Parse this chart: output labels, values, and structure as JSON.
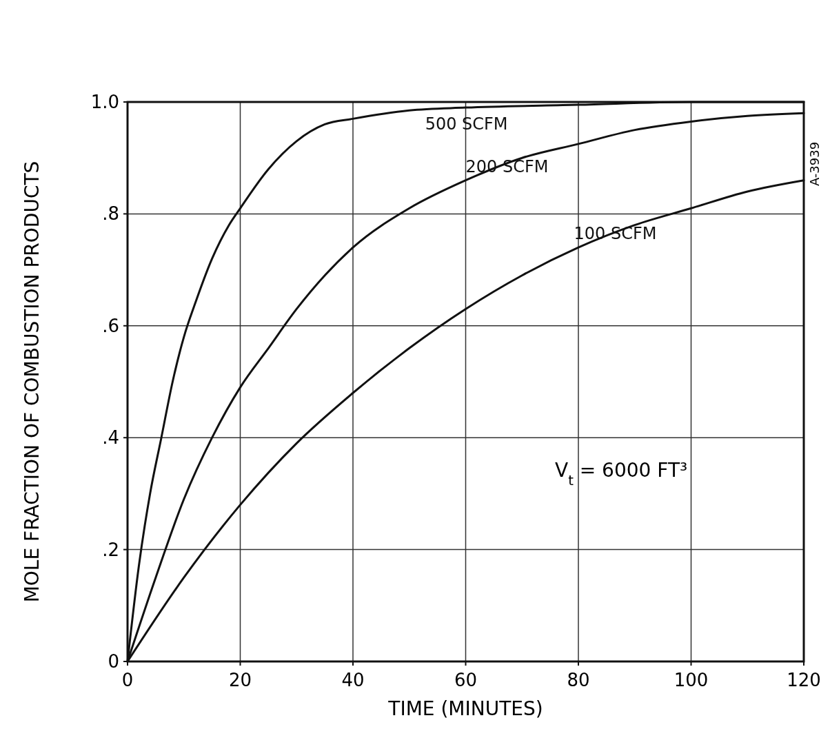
{
  "chart_data": {
    "type": "line",
    "xlabel": "TIME (MINUTES)",
    "ylabel": "MOLE FRACTION OF COMBUSTION PRODUCTS",
    "xlim": [
      0,
      120
    ],
    "ylim": [
      0,
      1
    ],
    "xticks": [
      0,
      20,
      40,
      60,
      80,
      100,
      120
    ],
    "yticks": [
      0,
      {
        "value": 0.2,
        "label": ".2"
      },
      {
        "value": 0.4,
        "label": ".4"
      },
      {
        "value": 0.6,
        "label": ".6"
      },
      {
        "value": 0.8,
        "label": ".8"
      },
      {
        "value": 1,
        "label": "1.0"
      }
    ],
    "grid": true,
    "marker": "none",
    "line_style": "solid",
    "series": [
      {
        "name": "500 SCFM",
        "color": "#111111",
        "x": [
          0,
          2,
          4,
          6,
          8,
          10,
          12,
          15,
          18,
          20,
          25,
          30,
          35,
          40,
          50,
          60,
          80,
          100,
          120
        ],
        "values": [
          0,
          0.17,
          0.3,
          0.4,
          0.5,
          0.58,
          0.64,
          0.72,
          0.78,
          0.81,
          0.88,
          0.93,
          0.96,
          0.97,
          0.985,
          0.99,
          0.995,
          1,
          1
        ]
      },
      {
        "name": "200 SCFM",
        "color": "#111111",
        "x": [
          0,
          5,
          10,
          15,
          20,
          25,
          30,
          35,
          40,
          50,
          60,
          70,
          80,
          90,
          100,
          110,
          120
        ],
        "values": [
          0,
          0.15,
          0.29,
          0.4,
          0.49,
          0.56,
          0.63,
          0.69,
          0.74,
          0.81,
          0.86,
          0.9,
          0.925,
          0.95,
          0.965,
          0.975,
          0.98
        ]
      },
      {
        "name": "100 SCFM",
        "color": "#111111",
        "x": [
          0,
          10,
          20,
          30,
          40,
          50,
          60,
          70,
          80,
          90,
          100,
          110,
          120
        ],
        "values": [
          0,
          0.15,
          0.28,
          0.39,
          0.48,
          0.56,
          0.63,
          0.69,
          0.74,
          0.78,
          0.81,
          0.84,
          0.86
        ]
      }
    ],
    "annotations": [
      "V$_{t}$ = 6000 FT³",
      "A-3939"
    ]
  }
}
